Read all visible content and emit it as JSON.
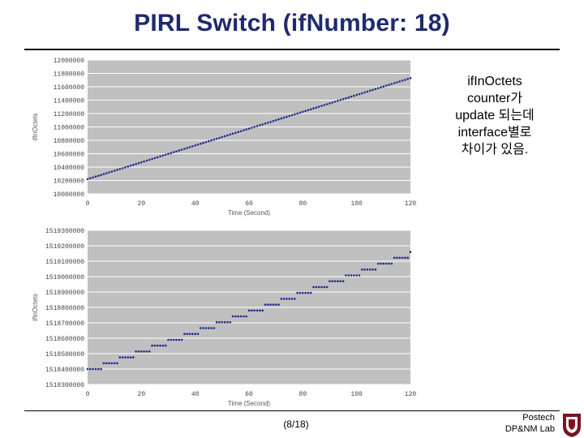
{
  "slide": {
    "title": "PIRL Switch (ifNumber: 18)",
    "note_lines": [
      "ifInOctets",
      "counter가",
      "update 되는데",
      "interface별로",
      "차이가 있음."
    ],
    "footer_page": "(8/18)",
    "footer_lab_lines": [
      "Postech",
      "DP&NM Lab"
    ]
  },
  "colors": {
    "title": "#1f2a6e",
    "plot_bg": "#c0c0c0",
    "gridline": "#ffffff",
    "series": "#1f2a8a"
  },
  "chart_data": [
    {
      "type": "scatter",
      "title": "",
      "xlabel": "Time (Second)",
      "ylabel": "ifInOctets",
      "xlim": [
        0,
        120
      ],
      "ylim": [
        10000000,
        12000000
      ],
      "xticks": [
        0,
        20,
        40,
        60,
        80,
        100,
        120
      ],
      "ytick_labels": [
        "10000000",
        "10200000",
        "10400000",
        "10600000",
        "10800000",
        "11000000",
        "11200000",
        "11400000",
        "11600000",
        "11800000",
        "12000000"
      ],
      "grid": true,
      "legend": "none",
      "series": [
        {
          "start": [
            0,
            10220000
          ],
          "end": [
            120,
            11730000
          ],
          "step_every": 1,
          "n_points": 121
        }
      ]
    },
    {
      "type": "scatter",
      "title": "",
      "xlabel": "Time (Second)",
      "ylabel": "ifInOctets",
      "xlim": [
        0,
        120
      ],
      "ylim": [
        1518300000,
        1519300000
      ],
      "xticks": [
        0,
        20,
        40,
        60,
        80,
        100,
        120
      ],
      "ytick_labels": [
        "1518300000",
        "1518400000",
        "1518500000",
        "1518600000",
        "1518700000",
        "1518800000",
        "1518900000",
        "1519000000",
        "1519100000",
        "1519200000",
        "1519300000"
      ],
      "grid": true,
      "legend": "none",
      "series": [
        {
          "start": [
            0,
            1518400000
          ],
          "end": [
            120,
            1519160000
          ],
          "step_every": 6,
          "n_points": 121
        }
      ]
    }
  ]
}
